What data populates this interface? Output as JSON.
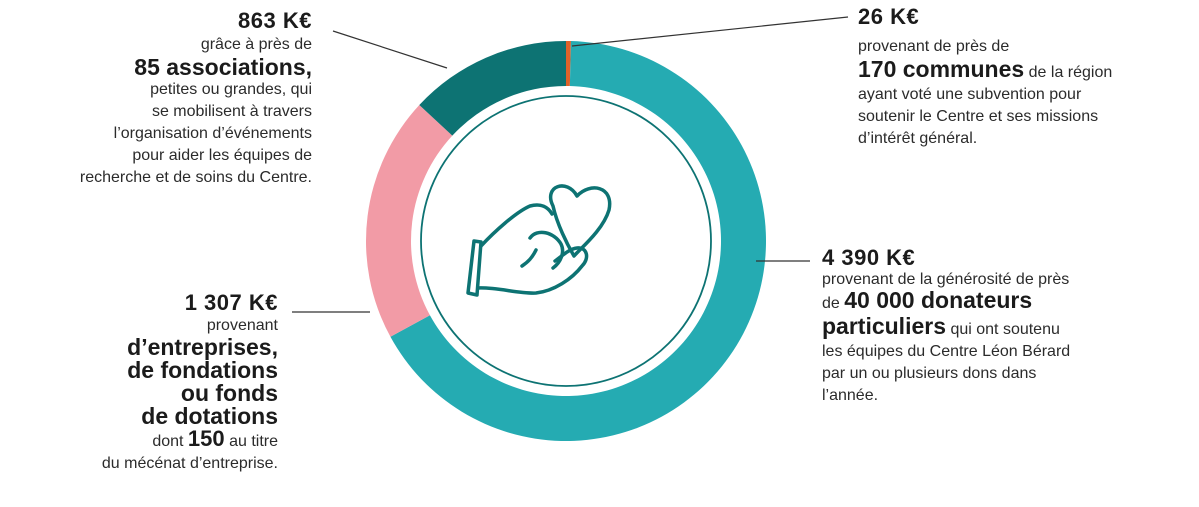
{
  "chart_data": {
    "type": "pie",
    "donut": true,
    "slices": [
      {
        "label": "26 K€",
        "value": 26,
        "color": "#e0622a"
      },
      {
        "label": "4 390 K€",
        "value": 4390,
        "color": "#25abb2"
      },
      {
        "label": "1 307 K€",
        "value": 1307,
        "color": "#f29ba6"
      },
      {
        "label": "863 K€",
        "value": 863,
        "color": "#0d7373"
      }
    ],
    "icon": "hand-holding-heart-icon"
  },
  "annotations": {
    "associations": {
      "amount": "863 K€",
      "line1": "grâce à près de",
      "highlight": "85 associations,",
      "rest": [
        "petites ou grandes, qui",
        "se mobilisent à travers",
        "l’organisation d’événements",
        "pour aider les équipes de",
        "recherche et de soins du Centre."
      ]
    },
    "communes": {
      "amount": "26 K€",
      "line1": "provenant de près de",
      "highlight": "170 communes",
      "after_highlight": "de la région",
      "rest": [
        "ayant voté une subvention pour",
        "soutenir le Centre et ses missions",
        "d’intérêt général."
      ]
    },
    "entreprises": {
      "amount": "1 307 K€",
      "line1": "provenant",
      "highlight": [
        "d’entreprises,",
        "de fondations",
        "ou fonds",
        "de dotations"
      ],
      "dont_prefix": "dont",
      "dont_value": "150",
      "dont_suffix": "au titre",
      "rest": [
        "du mécénat d’entreprise."
      ]
    },
    "donateurs": {
      "amount": "4 390 K€",
      "line1": "provenant de la générosité de près",
      "line2_prefix": "de",
      "highlight1": "40 000 donateurs",
      "highlight2": "particuliers",
      "after_highlight": "qui ont soutenu",
      "rest": [
        "les équipes du Centre Léon Bérard",
        "par un ou plusieurs dons dans",
        "l’année."
      ]
    }
  }
}
